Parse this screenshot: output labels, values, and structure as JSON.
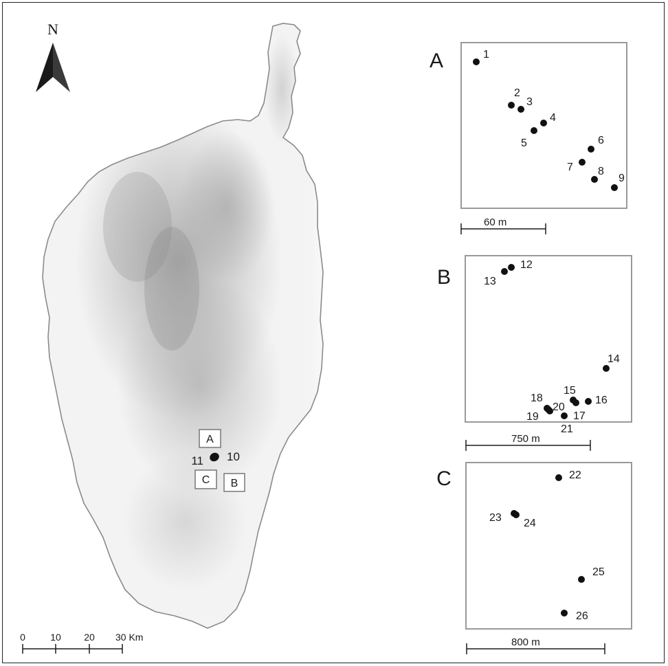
{
  "north_arrow": {
    "label": "N"
  },
  "main_scale": {
    "ticks": [
      "0",
      "10",
      "20",
      "30 Km"
    ]
  },
  "main_map": {
    "boxes": [
      {
        "id": "A",
        "label": "A"
      },
      {
        "id": "B",
        "label": "B"
      },
      {
        "id": "C",
        "label": "C"
      }
    ],
    "site_labels": [
      {
        "id": "10",
        "label": "10"
      },
      {
        "id": "11",
        "label": "11"
      }
    ]
  },
  "insets": [
    {
      "id": "A",
      "label": "A",
      "scale_label": "60 m",
      "points": [
        {
          "id": "1",
          "label": "1"
        },
        {
          "id": "2",
          "label": "2"
        },
        {
          "id": "3",
          "label": "3"
        },
        {
          "id": "4",
          "label": "4"
        },
        {
          "id": "5",
          "label": "5"
        },
        {
          "id": "6",
          "label": "6"
        },
        {
          "id": "7",
          "label": "7"
        },
        {
          "id": "8",
          "label": "8"
        },
        {
          "id": "9",
          "label": "9"
        }
      ]
    },
    {
      "id": "B",
      "label": "B",
      "scale_label": "750 m",
      "points": [
        {
          "id": "12",
          "label": "12"
        },
        {
          "id": "13",
          "label": "13"
        },
        {
          "id": "14",
          "label": "14"
        },
        {
          "id": "15",
          "label": "15"
        },
        {
          "id": "16",
          "label": "16"
        },
        {
          "id": "17",
          "label": "17"
        },
        {
          "id": "18",
          "label": "18"
        },
        {
          "id": "19",
          "label": "19"
        },
        {
          "id": "20",
          "label": "20"
        },
        {
          "id": "21",
          "label": "21"
        }
      ]
    },
    {
      "id": "C",
      "label": "C",
      "scale_label": "800 m",
      "points": [
        {
          "id": "22",
          "label": "22"
        },
        {
          "id": "23",
          "label": "23"
        },
        {
          "id": "24",
          "label": "24"
        },
        {
          "id": "25",
          "label": "25"
        },
        {
          "id": "26",
          "label": "26"
        }
      ]
    }
  ],
  "colors": {
    "coast": "#8a8a8a",
    "relief_low": "#f4f4f4",
    "relief_high": "#7d7d7d",
    "ink": "#1a1a1a"
  }
}
